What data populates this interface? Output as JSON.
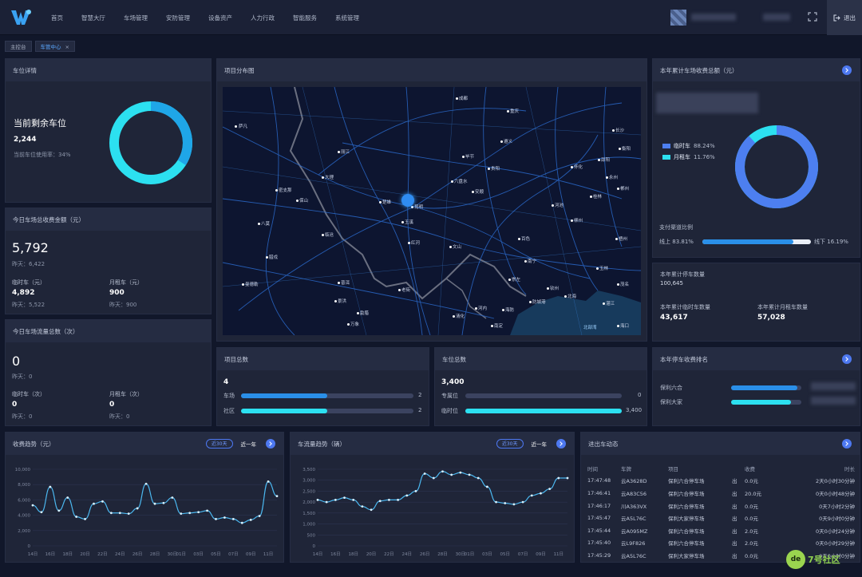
{
  "nav": {
    "items": [
      "首页",
      "智慧大厅",
      "车场管理",
      "安防管理",
      "设备资产",
      "人力行政",
      "智能服务",
      "系统管理"
    ],
    "logout": "退出"
  },
  "tabs": [
    "主控台",
    "车管中心"
  ],
  "spaces": {
    "title": "车位详情",
    "heading": "当前剩余车位",
    "count": "2,244",
    "usage": "当前车位使用率：34%",
    "usage_fraction": 0.34,
    "colors": {
      "used": "#1fa6e8",
      "free": "#2ce0f0"
    }
  },
  "revenue_today": {
    "title": "今日车场总收费金额（元）",
    "total": "5,792",
    "yesterday": "昨天：6,422",
    "temp_label": "临时车（元）",
    "temp_value": "4,892",
    "temp_yesterday": "昨天：5,522",
    "month_label": "月租车（元）",
    "month_value": "900",
    "month_yesterday": "昨天：900"
  },
  "traffic_today": {
    "title": "今日车场流量总数（次）",
    "total": "0",
    "yesterday": "昨天：0",
    "temp_label": "临时车（次）",
    "temp_value": "0",
    "temp_yesterday": "昨天：0",
    "month_label": "月租车（次）",
    "month_value": "0",
    "month_yesterday": "昨天：0"
  },
  "map": {
    "title": "项目分布图",
    "cities": [
      "萨凡",
      "昆明",
      "楚雄",
      "玉溪",
      "红河",
      "文山",
      "丽江",
      "大理",
      "保山",
      "普洱",
      "临沧",
      "南宁",
      "贵阳",
      "遵义",
      "成都",
      "重庆",
      "长沙",
      "桂林",
      "柳州",
      "北海",
      "钦州",
      "防城港",
      "曼德勒",
      "万象",
      "河内",
      "海防",
      "南定",
      "清化",
      "老街",
      "景洪",
      "北部湾",
      "百色",
      "河池",
      "梧州",
      "玉林",
      "崇左",
      "六盘水",
      "安顺",
      "毕节",
      "怀化",
      "邵阳",
      "永州",
      "衡阳",
      "郴州",
      "湛江",
      "茂名",
      "海口",
      "密支那",
      "八莫",
      "腊戍",
      "勐腊"
    ],
    "marker": "昆明"
  },
  "annual_revenue": {
    "title": "本年累计车场收费总额（元）",
    "legend": [
      {
        "name": "临时车",
        "pct": "88.24%",
        "color": "#4d7ff0"
      },
      {
        "name": "月租车",
        "pct": "11.76%",
        "color": "#2ce0f0"
      }
    ],
    "temp_fraction": 0.8824,
    "payment_title": "支付渠道比例",
    "online_label": "线上",
    "online_pct": "83.81%",
    "online_fraction": 0.8381,
    "offline_label": "线下",
    "offline_pct": "16.19%"
  },
  "annual_parking": {
    "title": "本年累计停车数量",
    "total": "100,645",
    "temp_label": "本年累计临时车数量",
    "temp_value": "43,617",
    "month_label": "本年累计月租车数量",
    "month_value": "57,028"
  },
  "projects": {
    "title": "项目总数",
    "total": "4",
    "rows": [
      {
        "label": "车场",
        "value": "2",
        "fraction": 0.5,
        "color": "#2a8fe8"
      },
      {
        "label": "社区",
        "value": "2",
        "fraction": 0.5,
        "color": "#2ce0f0"
      }
    ]
  },
  "spaces_total": {
    "title": "车位总数",
    "total": "3,400",
    "rows": [
      {
        "label": "专属位",
        "value": "0",
        "fraction": 0,
        "color": "#2a8fe8"
      },
      {
        "label": "临时位",
        "value": "3,400",
        "fraction": 1,
        "color": "#2ce0f0"
      }
    ]
  },
  "ranking": {
    "title": "本年停车收费排名",
    "rows": [
      {
        "label": "保利六合",
        "fraction": 0.94
      },
      {
        "label": "保利大家",
        "fraction": 0.85
      }
    ]
  },
  "revenue_trend": {
    "title": "收费趋势（元）",
    "pill": "近30天",
    "alt": "近一年",
    "chart_data": {
      "type": "line",
      "x": [
        "14日",
        "15日",
        "16日",
        "17日",
        "18日",
        "19日",
        "20日",
        "21日",
        "22日",
        "23日",
        "24日",
        "25日",
        "26日",
        "27日",
        "28日",
        "29日",
        "30日",
        "01日",
        "02日",
        "03日",
        "04日",
        "05日",
        "06日",
        "07日",
        "08日",
        "09日",
        "10日",
        "11日",
        "12日"
      ],
      "values": [
        5300,
        4400,
        7700,
        4600,
        6300,
        3800,
        3500,
        5500,
        5800,
        4300,
        4300,
        4200,
        4900,
        8100,
        5500,
        5600,
        6300,
        4200,
        4300,
        4400,
        4600,
        3500,
        3700,
        3500,
        3000,
        3400,
        3900,
        8400,
        6500
      ],
      "ylim": [
        0,
        10000
      ],
      "yticks": [
        0,
        2000,
        4000,
        6000,
        8000,
        10000
      ],
      "xticks": [
        "14日",
        "16日",
        "18日",
        "20日",
        "22日",
        "24日",
        "26日",
        "28日",
        "30日",
        "01日",
        "03日",
        "05日",
        "07日",
        "09日",
        "11日"
      ]
    }
  },
  "traffic_trend": {
    "title": "车流量趋势（辆）",
    "pill": "近30天",
    "alt": "近一年",
    "chart_data": {
      "type": "line",
      "x": [
        "14日",
        "15日",
        "16日",
        "17日",
        "18日",
        "19日",
        "20日",
        "21日",
        "22日",
        "23日",
        "24日",
        "25日",
        "26日",
        "27日",
        "28日",
        "29日",
        "30日",
        "01日",
        "02日",
        "03日",
        "04日",
        "05日",
        "06日",
        "07日",
        "08日",
        "09日",
        "10日",
        "11日",
        "12日"
      ],
      "values": [
        2100,
        2000,
        2100,
        2200,
        2100,
        1800,
        1650,
        2050,
        2100,
        2100,
        2300,
        2500,
        3300,
        3100,
        3400,
        3250,
        3350,
        3250,
        3100,
        2700,
        2000,
        1950,
        1900,
        2000,
        2300,
        2400,
        2600,
        3100,
        3100
      ],
      "ylim": [
        0,
        3500
      ],
      "yticks": [
        0,
        500,
        1000,
        1500,
        2000,
        2500,
        3000,
        3500
      ],
      "xticks": [
        "14日",
        "16日",
        "18日",
        "20日",
        "22日",
        "24日",
        "26日",
        "28日",
        "30日",
        "01日",
        "03日",
        "05日",
        "07日",
        "09日",
        "11日"
      ]
    }
  },
  "flow": {
    "title": "进出车动态",
    "headers": [
      "时间",
      "车牌",
      "项目",
      "",
      "收费",
      "时长"
    ],
    "rows": [
      [
        "17:47:48",
        "云A3628D",
        "保利六合停车场",
        "出",
        "0.0元",
        "2天0小时30分钟"
      ],
      [
        "17:46:41",
        "云A83C56",
        "保利六合停车场",
        "出",
        "20.0元",
        "0天0小时48分钟"
      ],
      [
        "17:46:17",
        "川A363VX",
        "保利六合停车场",
        "出",
        "0.0元",
        "0天7小时2分钟"
      ],
      [
        "17:45:47",
        "云A5L76C",
        "保利大家停车场",
        "出",
        "0.0元",
        "0天9小时0分钟"
      ],
      [
        "17:45:44",
        "云A095MZ",
        "保利六合停车场",
        "出",
        "2.0元",
        "0天0小时24分钟"
      ],
      [
        "17:45:40",
        "云L9F826",
        "保利六合停车场",
        "出",
        "2.0元",
        "0天0小时29分钟"
      ],
      [
        "17:45:29",
        "云A5L76C",
        "保利大家停车场",
        "出",
        "0.0元",
        "0天0小时0分钟"
      ]
    ]
  },
  "watermark": "7号社区"
}
